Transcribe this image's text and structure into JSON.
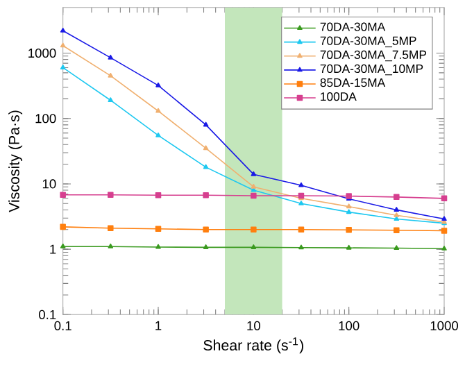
{
  "chart_data": {
    "type": "line",
    "xlabel": "Shear rate (s$^{-1}$)",
    "ylabel": "Viscosity (Pa·s)",
    "log": "xy",
    "x": [
      0.1,
      0.316,
      1,
      3.16,
      10,
      31.6,
      100,
      316,
      1000
    ],
    "xlim": [
      0.1,
      1000
    ],
    "ylim": [
      0.1,
      5000
    ],
    "xticks": [
      0.1,
      1,
      10,
      100,
      1000
    ],
    "yticks": [
      0.1,
      1,
      10,
      100,
      1000
    ],
    "legend": "top right",
    "marker": "triangle",
    "line_style": "solid",
    "bands": [
      {
        "axis": "x",
        "from": 5,
        "to": 20,
        "color": "#c3e6bb"
      }
    ],
    "series": [
      {
        "name": "70DA-30MA",
        "color": "#3a9a1f",
        "values": [
          1.1,
          1.1,
          1.08,
          1.07,
          1.07,
          1.06,
          1.05,
          1.04,
          1.02
        ]
      },
      {
        "name": "70DA-30MA_5MP",
        "color": "#1ec8f0",
        "values": [
          600,
          190,
          55,
          18,
          8,
          5,
          3.7,
          2.9,
          2.5
        ]
      },
      {
        "name": "70DA-30MA_7.5MP",
        "color": "#f0b070",
        "values": [
          1300,
          450,
          130,
          35,
          9,
          6,
          4.5,
          3.3,
          2.6
        ]
      },
      {
        "name": "70DA-30MA_10MP",
        "color": "#1a1ae6",
        "values": [
          2200,
          850,
          320,
          80,
          14,
          9.5,
          5.9,
          4,
          2.9
        ]
      },
      {
        "name": "85DA-15MA",
        "color": "#ff7f0e",
        "marker": "square",
        "values": [
          2.2,
          2.1,
          2.05,
          2.0,
          2.0,
          2.0,
          1.98,
          1.95,
          1.92
        ]
      },
      {
        "name": "100DA",
        "color": "#d63f8f",
        "marker": "square",
        "values": [
          6.8,
          6.8,
          6.7,
          6.7,
          6.6,
          6.6,
          6.5,
          6.3,
          6.0
        ]
      }
    ]
  }
}
